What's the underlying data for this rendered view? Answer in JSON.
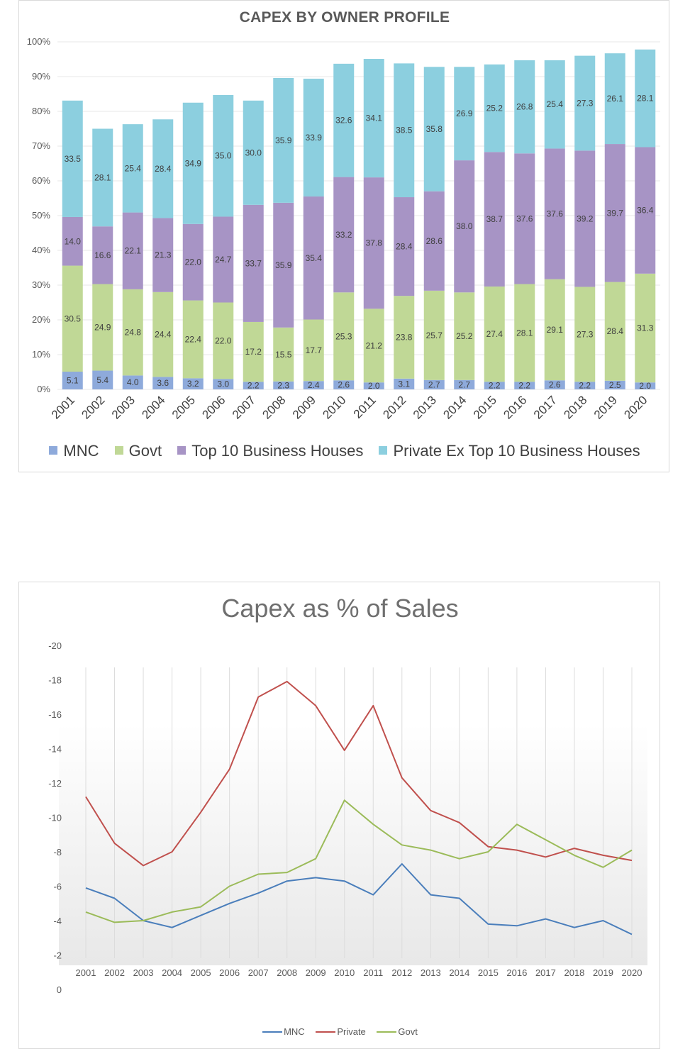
{
  "charts": {
    "stacked": {
      "title": "CAPEX BY OWNER PROFILE",
      "colors": {
        "MNC": "#8eaadb",
        "Govt": "#c0d896",
        "Top10": "#a794c5",
        "Private": "#8ccfdf",
        "text": "#404040",
        "grid": "#e7e7e7"
      }
    },
    "line": {
      "title": "Capex as % of Sales",
      "colors": {
        "MNC": "#4a7ebb",
        "Private": "#c0504d",
        "Govt": "#9bbb59",
        "grid": "#dcdcdc"
      }
    }
  },
  "chart_data": [
    {
      "type": "bar",
      "stacked": true,
      "title": "CAPEX BY OWNER PROFILE",
      "categories": [
        "2001",
        "2002",
        "2003",
        "2004",
        "2005",
        "2006",
        "2007",
        "2008",
        "2009",
        "2010",
        "2011",
        "2012",
        "2013",
        "2014",
        "2015",
        "2016",
        "2017",
        "2018",
        "2019",
        "2020"
      ],
      "y_ticks": [
        "0%",
        "10%",
        "20%",
        "30%",
        "40%",
        "50%",
        "60%",
        "70%",
        "80%",
        "90%",
        "100%"
      ],
      "ylim": [
        0,
        100
      ],
      "legend_position": "bottom",
      "series": [
        {
          "name": "MNC",
          "values": [
            5.1,
            5.4,
            4.0,
            3.6,
            3.2,
            3.0,
            2.2,
            2.3,
            2.4,
            2.6,
            2.0,
            3.1,
            2.7,
            2.7,
            2.2,
            2.2,
            2.6,
            2.2,
            2.5,
            2.0
          ],
          "labels": [
            "5.1",
            "5.4",
            "4.0",
            "3.6",
            "3.2",
            "3.0",
            "2.2",
            "2.3",
            "2.4",
            "2.6",
            "2.0",
            "3.1",
            "2.7",
            "2.7",
            "2.2",
            "2.2",
            "2.6",
            "2.2",
            "2.5",
            "2.0"
          ]
        },
        {
          "name": "Govt",
          "values": [
            30.5,
            24.9,
            24.8,
            24.4,
            22.4,
            22.0,
            17.2,
            15.5,
            17.7,
            25.3,
            21.2,
            23.8,
            25.7,
            25.2,
            27.4,
            28.1,
            29.1,
            27.3,
            28.4,
            31.3
          ],
          "labels": [
            "30.5",
            "24.9",
            "24.8",
            "24.4",
            "22.4",
            "22.0",
            "17.2",
            "15.5",
            "17.7",
            "25.3",
            "21.2",
            "23.8",
            "25.7",
            "25.2",
            "27.4",
            "28.1",
            "29.1",
            "27.3",
            "28.4",
            "31.3"
          ]
        },
        {
          "name": "Top 10 Business Houses",
          "values": [
            14.0,
            16.6,
            22.1,
            21.3,
            22.0,
            24.7,
            33.7,
            35.9,
            35.4,
            33.2,
            37.8,
            28.4,
            28.6,
            38.0,
            38.7,
            37.6,
            37.6,
            39.2,
            39.7,
            36.4
          ],
          "labels": [
            "14.0",
            "16.6",
            "22.1",
            "21.3",
            "22.0",
            "24.7",
            "33.7",
            "35.9",
            "35.4",
            "33.2",
            "37.8",
            "28.4",
            "28.6",
            "38.0",
            "38.7",
            "37.6",
            "37.6",
            "39.2",
            "39.7",
            "36.4"
          ]
        },
        {
          "name": "Private Ex Top 10 Business Houses",
          "values": [
            33.5,
            28.1,
            25.4,
            28.4,
            34.9,
            35.0,
            30.0,
            35.9,
            33.9,
            32.6,
            34.1,
            38.5,
            35.8,
            26.9,
            25.2,
            26.8,
            25.4,
            27.3,
            26.1,
            28.1
          ],
          "labels": [
            "33.5",
            "28.1",
            "25.4",
            "28.4",
            "34.9",
            "35.0",
            "30.0",
            "35.9",
            "33.9",
            "32.6",
            "34.1",
            "38.5",
            "35.8",
            "26.9",
            "25.2",
            "26.8",
            "25.4",
            "27.3",
            "26.1",
            "28.1"
          ]
        }
      ]
    },
    {
      "type": "line",
      "title": "Capex as % of Sales",
      "categories": [
        "2001",
        "2002",
        "2003",
        "2004",
        "2005",
        "2006",
        "2007",
        "2008",
        "2009",
        "2010",
        "2011",
        "2012",
        "2013",
        "2014",
        "2015",
        "2016",
        "2017",
        "2018",
        "2019",
        "2020"
      ],
      "y_ticks": [
        "0",
        "-2",
        "-4",
        "-6",
        "-8",
        "-10",
        "-12",
        "-14",
        "-16",
        "-18",
        "-20"
      ],
      "ylim": [
        0,
        -20
      ],
      "legend_position": "bottom",
      "series": [
        {
          "name": "MNC",
          "values": [
            -5.9,
            -5.3,
            -4.0,
            -3.6,
            -4.3,
            -5.0,
            -5.6,
            -6.3,
            -6.5,
            -6.3,
            -5.5,
            -7.3,
            -5.5,
            -5.3,
            -3.8,
            -3.7,
            -4.1,
            -3.6,
            -4.0,
            -3.2
          ]
        },
        {
          "name": "Private",
          "values": [
            -11.2,
            -8.5,
            -7.2,
            -8.0,
            -10.3,
            -12.8,
            -17.0,
            -17.9,
            -16.5,
            -13.9,
            -16.5,
            -12.3,
            -10.4,
            -9.7,
            -8.3,
            -8.1,
            -7.7,
            -8.2,
            -7.8,
            -7.5
          ]
        },
        {
          "name": "Govt",
          "values": [
            -4.5,
            -3.9,
            -4.0,
            -4.5,
            -4.8,
            -6.0,
            -6.7,
            -6.8,
            -7.6,
            -11.0,
            -9.6,
            -8.4,
            -8.1,
            -7.6,
            -8.0,
            -9.6,
            -8.7,
            -7.8,
            -7.1,
            -8.1
          ]
        }
      ]
    }
  ]
}
